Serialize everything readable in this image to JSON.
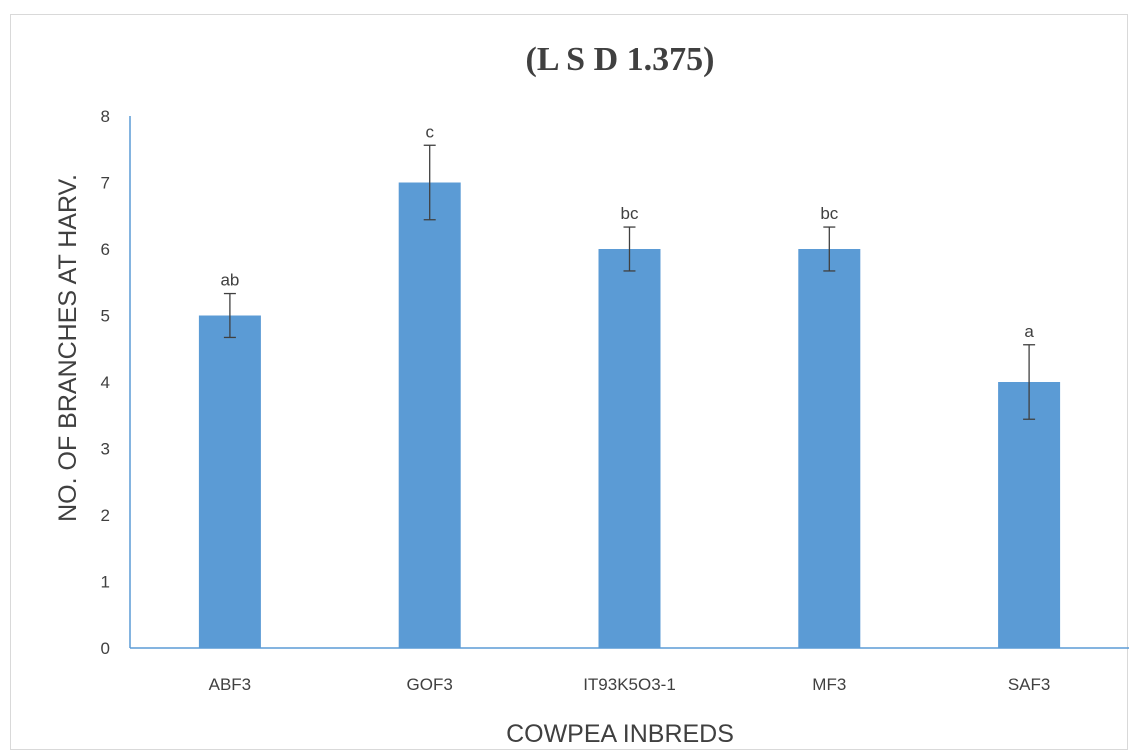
{
  "chart_data": {
    "type": "bar",
    "title": "(L S D 1.375)",
    "xlabel": "COWPEA INBREDS",
    "ylabel": "NO. OF BRANCHES AT HARV.",
    "categories": [
      "ABF3",
      "GOF3",
      "IT93K5O3-1",
      "MF3",
      "SAF3"
    ],
    "values": [
      5,
      7,
      6,
      6,
      4
    ],
    "error": [
      0.33,
      0.56,
      0.33,
      0.33,
      0.56
    ],
    "data_labels": [
      "ab",
      "c",
      "bc",
      "bc",
      "a"
    ],
    "ylim": [
      0,
      8
    ],
    "yticks": [
      "0",
      "1",
      "2",
      "3",
      "4",
      "5",
      "6",
      "7",
      "8"
    ],
    "grid": false,
    "legend": "none",
    "colors": {
      "bar": "#5b9bd5",
      "axis": "#5b9bd5",
      "error_bar": "#404040",
      "text": "#404040"
    }
  }
}
